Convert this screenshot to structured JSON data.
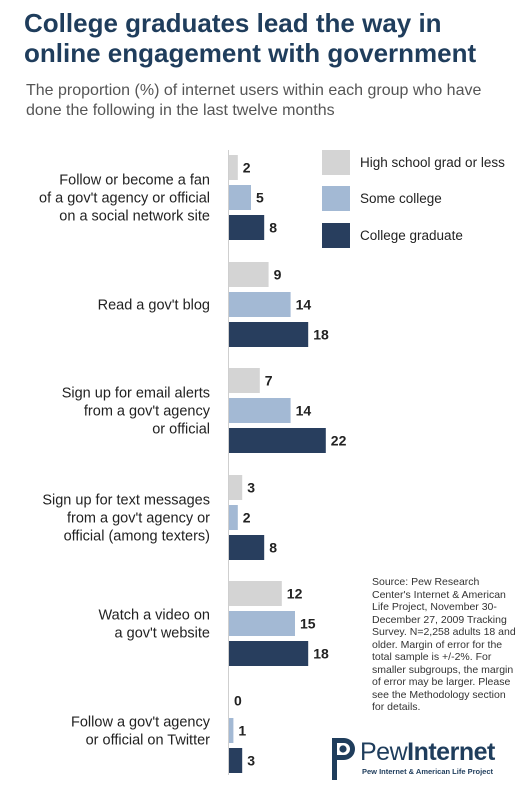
{
  "title": "College graduates lead the way in online engagement with government",
  "subtitle": "The proportion (%) of internet users within each group who have done the following in the last twelve months",
  "chart_data": {
    "type": "bar",
    "orientation": "horizontal",
    "categories": [
      [
        "Follow or become a fan",
        "of a gov't agency or official",
        "on a social network site"
      ],
      [
        "Read a gov't blog"
      ],
      [
        "Sign up for email alerts",
        "from a gov't agency",
        "or official"
      ],
      [
        "Sign up for text messages",
        "from a gov't agency or",
        "official (among texters)"
      ],
      [
        "Watch a video on",
        "a gov't website"
      ],
      [
        "Follow a gov't agency",
        "or official on Twitter"
      ]
    ],
    "series": [
      {
        "name": "High school grad or less",
        "color": "#d4d4d4",
        "values": [
          2,
          9,
          7,
          3,
          12,
          0
        ]
      },
      {
        "name": "Some college",
        "color": "#a3b9d4",
        "values": [
          5,
          14,
          14,
          2,
          15,
          1
        ]
      },
      {
        "name": "College graduate",
        "color": "#283e5e",
        "values": [
          8,
          18,
          22,
          8,
          18,
          3
        ]
      }
    ],
    "legend_position": "top-right",
    "grid": false
  },
  "source": "Source: Pew Research Center's Internet & American Life Project, November 30-December 27, 2009 Tracking Survey. N=2,258 adults 18 and older. Margin of error for the total sample is +/-2%. For smaller subgroups, the margin of error may be larger. Please see the Methodology section for details.",
  "logo": {
    "brand_light": "Pew",
    "brand_bold": "Internet",
    "tagline": "Pew Internet & American Life Project",
    "color": "#1f3d5c"
  }
}
